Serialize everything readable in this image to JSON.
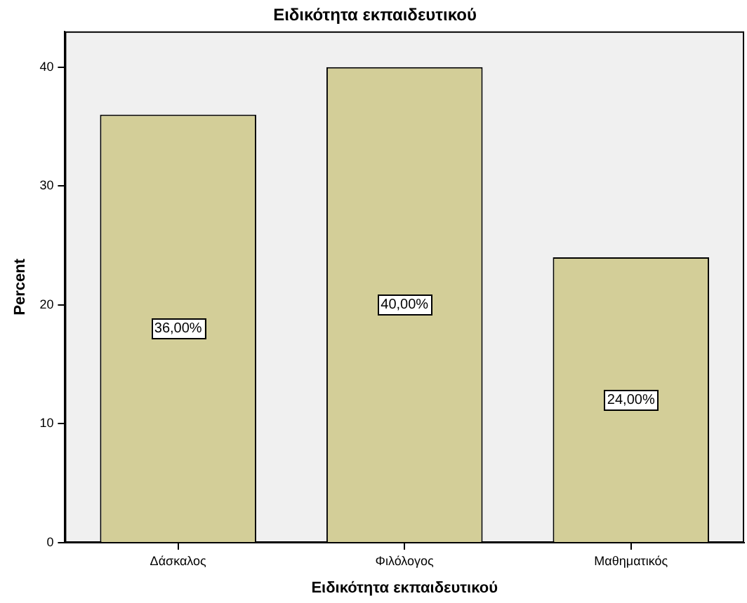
{
  "chart_data": {
    "type": "bar",
    "title": "Ειδικότητα εκπαιδευτικού",
    "xlabel": "Ειδικότητα εκπαιδευτικού",
    "ylabel": "Percent",
    "categories": [
      "Δάσκαλος",
      "Φιλόλογος",
      "Μαθηματικός"
    ],
    "values": [
      36,
      40,
      24
    ],
    "color": "#d3ce98",
    "value_labels": [
      "36,00%",
      "40,00%",
      "24,00%"
    ],
    "ylim": [
      0,
      43
    ],
    "yticks": [
      0,
      10,
      20,
      30,
      40
    ],
    "grid": false,
    "legend": false
  }
}
